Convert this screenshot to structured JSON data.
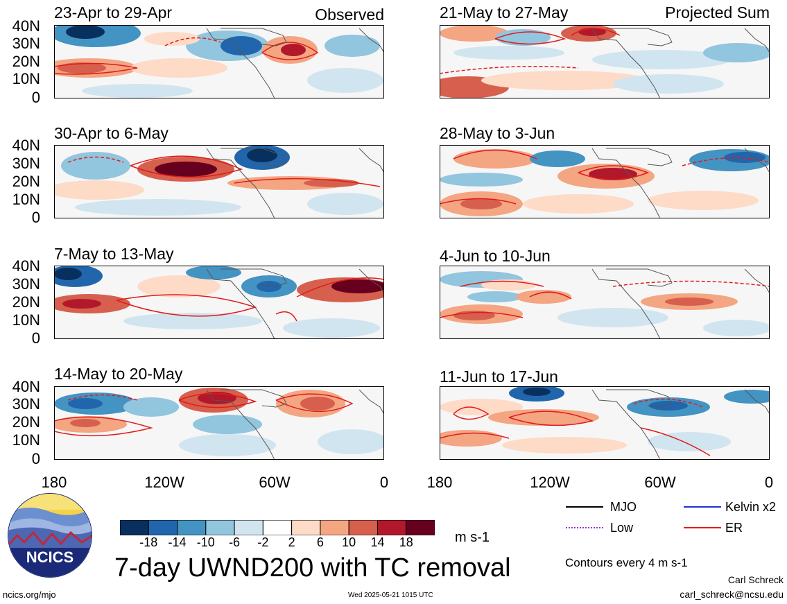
{
  "mode_labels": {
    "observed": "Observed",
    "projected": "Projected Sum"
  },
  "panels": [
    {
      "title": "23-Apr to 29-Apr",
      "column": "left",
      "row": 0
    },
    {
      "title": "30-Apr to 6-May",
      "column": "left",
      "row": 1
    },
    {
      "title": "7-May to 13-May",
      "column": "left",
      "row": 2
    },
    {
      "title": "14-May to 20-May",
      "column": "left",
      "row": 3
    },
    {
      "title": "21-May to 27-May",
      "column": "right",
      "row": 0
    },
    {
      "title": "28-May to 3-Jun",
      "column": "right",
      "row": 1
    },
    {
      "title": "4-Jun to 10-Jun",
      "column": "right",
      "row": 2
    },
    {
      "title": "11-Jun to 17-Jun",
      "column": "right",
      "row": 3
    }
  ],
  "lat_ticks": [
    "40N",
    "30N",
    "20N",
    "10N",
    "0"
  ],
  "lon_ticks": [
    "180",
    "120W",
    "60W",
    "0"
  ],
  "colorbar": {
    "colors": [
      "#08305e",
      "#2166ac",
      "#4393c3",
      "#92c5de",
      "#d1e5f0",
      "#ffffff",
      "#fddbc7",
      "#f4a582",
      "#d6604d",
      "#b2182b",
      "#67001f"
    ],
    "labels": [
      "-18",
      "-14",
      "-10",
      "-6",
      "-2",
      "2",
      "6",
      "10",
      "14",
      "18"
    ],
    "units": "m s-1"
  },
  "legend": {
    "items": [
      {
        "label": "MJO",
        "color": "#000000"
      },
      {
        "label": "Kelvin x2",
        "color": "#1f2fd8"
      },
      {
        "label": "Low",
        "color": "#9b30d9"
      },
      {
        "label": "ER",
        "color": "#e11b1b"
      }
    ],
    "contour_note": "Contours every 4 m s-1"
  },
  "footer": {
    "title": "7-day UWND200 with TC removal",
    "logo_text": "NCICS",
    "url": "ncics.org/mjo",
    "timestamp": "Wed 2025-05-21 1015 UTC",
    "author": "Carl Schreck",
    "email": "carl_schreck@ncsu.edu"
  }
}
